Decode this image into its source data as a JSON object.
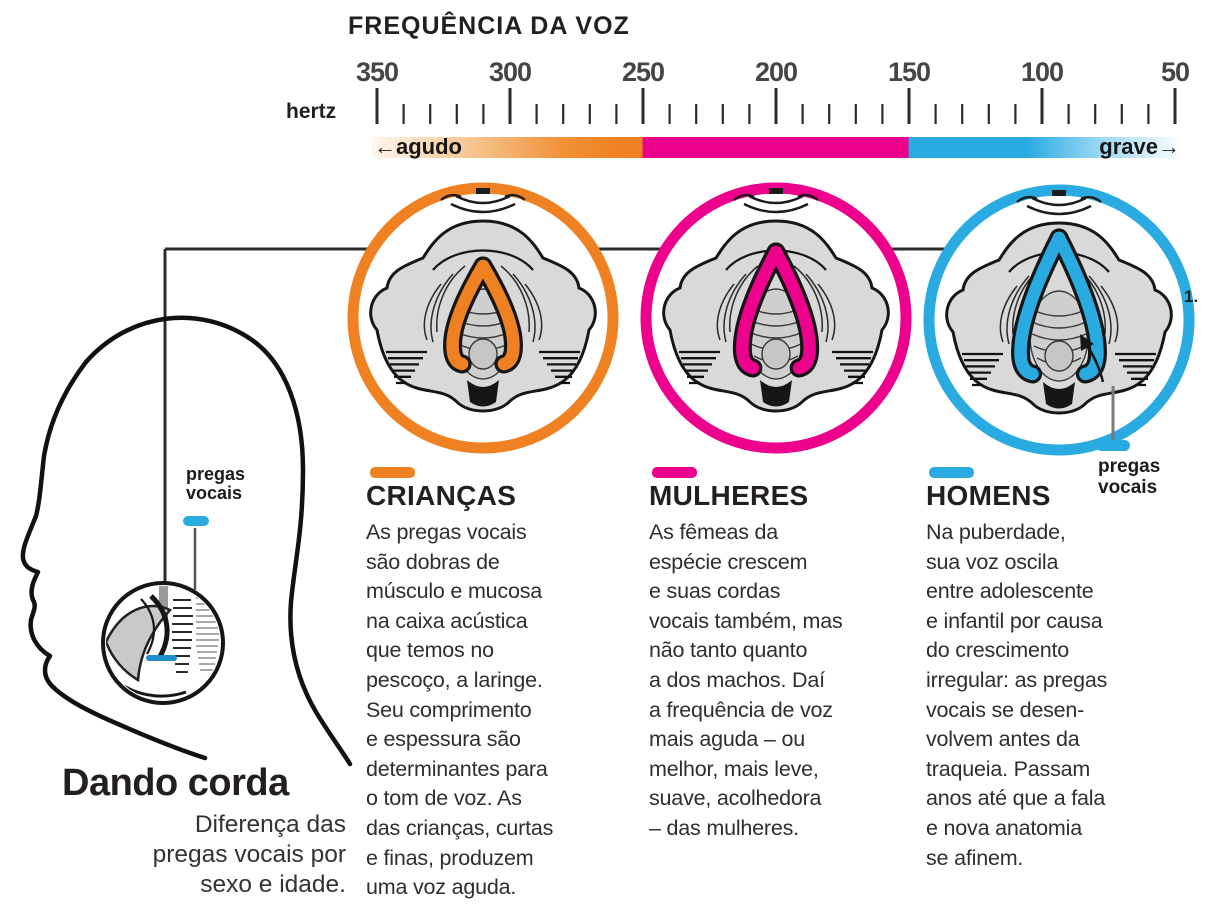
{
  "title": "FREQUÊNCIA DA VOZ",
  "colors": {
    "orange": "#F08122",
    "magenta": "#EC008C",
    "blue": "#29ABE2",
    "ink": "#231F20",
    "anatomy_gray": "#D9D9D9"
  },
  "scale": {
    "unit_label": "hertz",
    "tick_labels": [
      "350",
      "300",
      "250",
      "200",
      "150",
      "100",
      "50"
    ],
    "minor_ticks_per_major": 5
  },
  "bar": {
    "left_label": "←agudo",
    "right_label": "grave→"
  },
  "groups": [
    {
      "name": "CRIANÇAS",
      "color": "#F08122",
      "description": "As pregas vocais\nsão dobras de\nmúsculo e mucosa\nna caixa acústica\nque temos no\npescoço, a laringe.\nSeu comprimento\ne espessura são\ndeterminantes para\no tom de voz. As\ndas crianças, curtas\ne finas, produzem\numa voz aguda."
    },
    {
      "name": "MULHERES",
      "color": "#EC008C",
      "description": "As fêmeas da\nespécie crescem\ne suas cordas\nvocais também, mas\nnão tanto quanto\na dos machos. Daí\na frequência de voz\nmais aguda – ou\nmelhor, mais leve,\nsuave, acolhedora\n– das mulheres."
    },
    {
      "name": "HOMENS",
      "color": "#29ABE2",
      "description": "Na puberdade,\nsua voz oscila\nentre adolescente\ne infantil por causa\ndo crescimento\nirregular: as pregas\nvocais se desen-\nvolvem antes da\ntraqueia. Passam\nanos até que a fala\ne nova anatomia\nse afinem."
    }
  ],
  "callouts": {
    "left_label": "pregas\nvocais",
    "right_label": "pregas\nvocais"
  },
  "footnote": "1.",
  "heading": {
    "title": "Dando corda",
    "subtitle": "Diferença das\npregas vocais por\nsexo e idade."
  }
}
